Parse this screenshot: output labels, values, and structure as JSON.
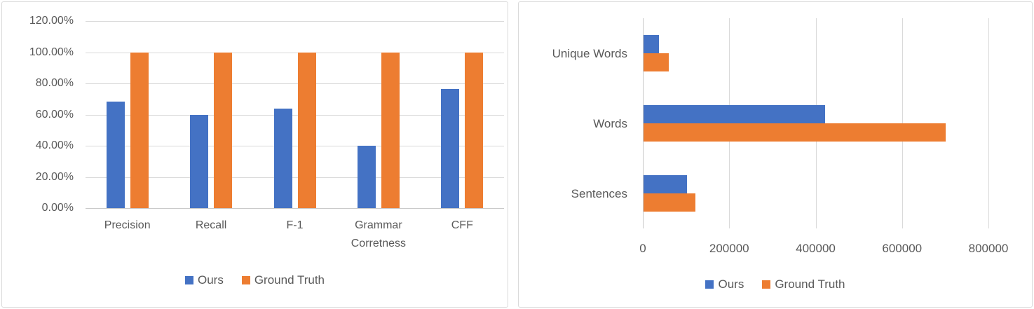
{
  "page": {
    "background": "#FFFFFF"
  },
  "palette": {
    "ours": "#4472C4",
    "ground_truth": "#ED7D31",
    "text": "#595959",
    "gridline": "#D9D9D9",
    "axis_line": "#C9C9C9",
    "panel_border": "#D9D9D9",
    "panel_background": "#FFFFFF"
  },
  "chart_data": [
    {
      "type": "bar",
      "orientation": "vertical",
      "title": "",
      "xlabel": "",
      "ylabel": "",
      "categories": [
        "Precision",
        "Recall",
        "F-1",
        "Grammar Corretness",
        "CFF"
      ],
      "series": [
        {
          "name": "Ours",
          "color": "#4472C4",
          "values": [
            68.5,
            60,
            64,
            40,
            76.5
          ]
        },
        {
          "name": "Ground Truth",
          "color": "#ED7D31",
          "values": [
            100,
            100,
            100,
            100,
            100
          ]
        }
      ],
      "value_unit": "percent",
      "ylim": [
        0,
        120
      ],
      "y_ticks": {
        "values": [
          0,
          20,
          40,
          60,
          80,
          100,
          120
        ],
        "labels": [
          "0.00%",
          "20.00%",
          "40.00%",
          "60.00%",
          "80.00%",
          "100.00%",
          "120.00%"
        ]
      },
      "grid": "horizontal",
      "legend_position": "bottom",
      "legend": [
        "Ours",
        "Ground Truth"
      ]
    },
    {
      "type": "bar",
      "orientation": "horizontal",
      "title": "",
      "xlabel": "",
      "ylabel": "",
      "categories": [
        "Unique Words",
        "Words",
        "Sentences"
      ],
      "series": [
        {
          "name": "Ours",
          "color": "#4472C4",
          "values": [
            36000,
            420000,
            100000
          ]
        },
        {
          "name": "Ground Truth",
          "color": "#ED7D31",
          "values": [
            58000,
            700000,
            120000
          ]
        }
      ],
      "value_unit": "count",
      "xlim": [
        0,
        800000
      ],
      "x_ticks": {
        "values": [
          0,
          200000,
          400000,
          600000,
          800000
        ],
        "labels": [
          "0",
          "200000",
          "400000",
          "600000",
          "800000"
        ]
      },
      "grid": "vertical",
      "legend_position": "bottom",
      "legend": [
        "Ours",
        "Ground Truth"
      ]
    }
  ]
}
